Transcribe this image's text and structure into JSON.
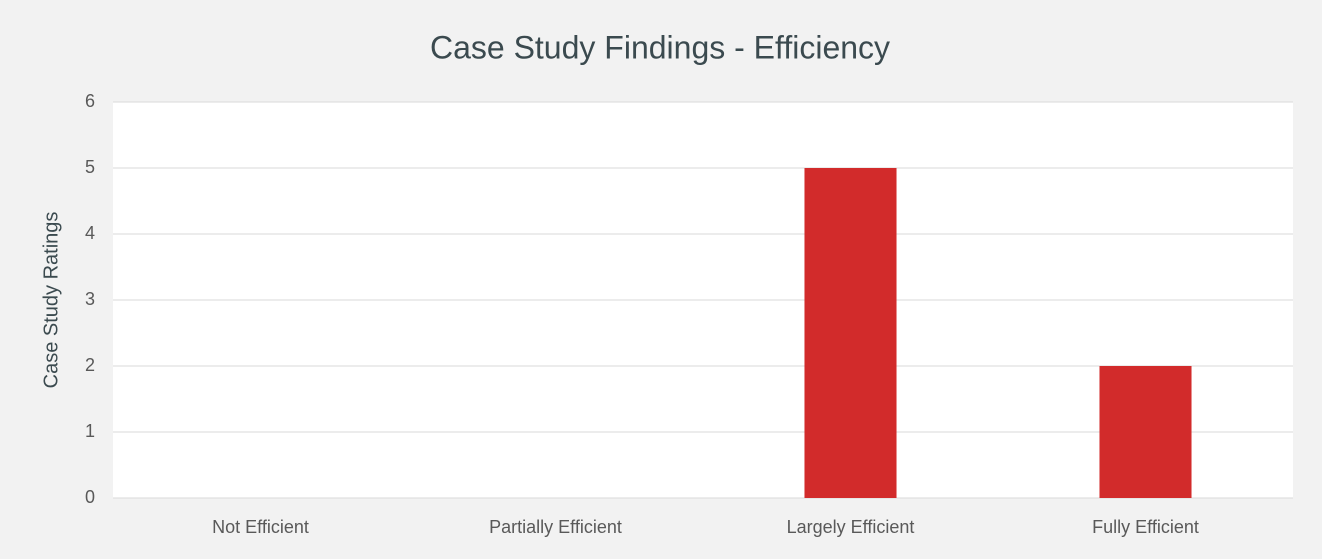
{
  "chart_data": {
    "type": "bar",
    "title": "Case Study Findings - Efficiency",
    "ylabel": "Case Study Ratings",
    "categories": [
      "Not Efficient",
      "Partially Efficient",
      "Largely Efficient",
      "Fully Efficient"
    ],
    "values": [
      0,
      0,
      5,
      2
    ],
    "color": "#d22b2b",
    "ylim": [
      0,
      6
    ],
    "yticks": [
      0,
      1,
      2,
      3,
      4,
      5,
      6
    ],
    "grid": true
  }
}
